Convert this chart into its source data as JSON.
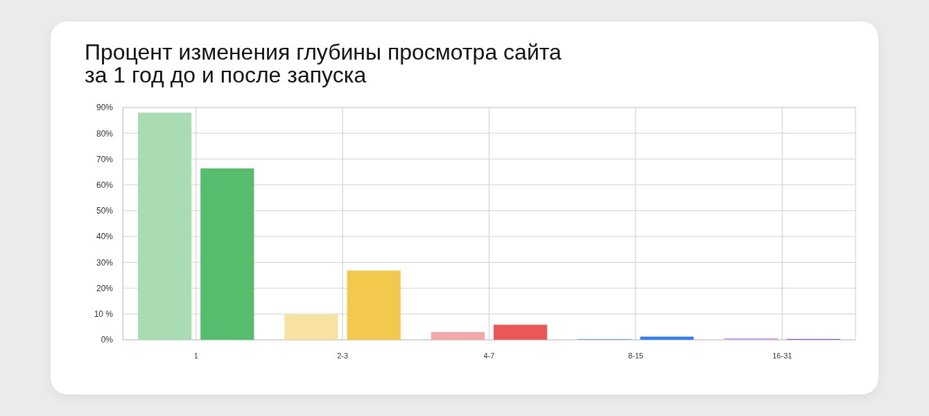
{
  "chart_data": {
    "type": "bar",
    "title": "Процент изменения глубины просмотра сайта\nза 1 год до и после запуска",
    "categories": [
      "1",
      "2-3",
      "4-7",
      "8-15",
      "16-31"
    ],
    "series": [
      {
        "colors": [
          "#a9dcb3",
          "#f8e2a2",
          "#f4a9a9",
          "#80aaeb",
          "#c9a7ea"
        ],
        "values": [
          88,
          9.8,
          3,
          0.3,
          0.6
        ]
      },
      {
        "colors": [
          "#55bd6c",
          "#f2c94c",
          "#eb5757",
          "#2f80ed",
          "#9b51e0"
        ],
        "values": [
          66.4,
          26.8,
          5.8,
          1.2,
          0.3
        ]
      }
    ],
    "ylim": [
      0,
      90
    ],
    "yticks": [
      {
        "value": 0,
        "label": "0%"
      },
      {
        "value": 10,
        "label": "10 %"
      },
      {
        "value": 20,
        "label": "20%"
      },
      {
        "value": 30,
        "label": "30%"
      },
      {
        "value": 40,
        "label": "40%"
      },
      {
        "value": 50,
        "label": "50%"
      },
      {
        "value": 60,
        "label": "60%"
      },
      {
        "value": 70,
        "label": "70%"
      },
      {
        "value": 80,
        "label": "80%"
      },
      {
        "value": 90,
        "label": "90%"
      }
    ],
    "grid": true
  }
}
